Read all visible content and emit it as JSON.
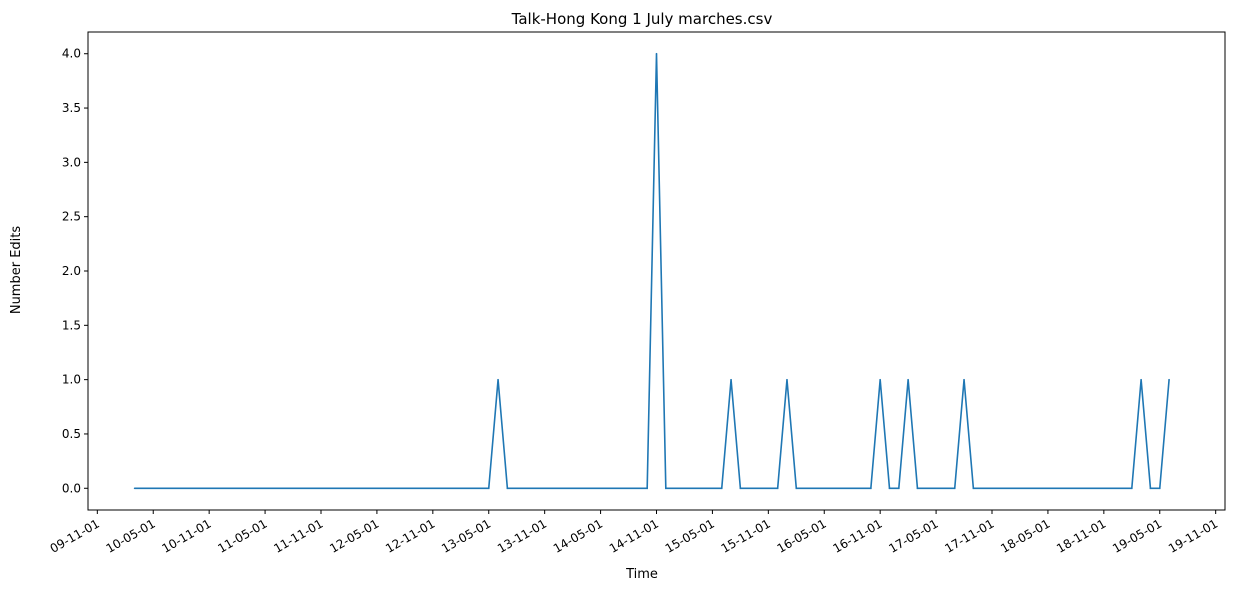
{
  "chart_data": {
    "type": "line",
    "title": "Talk-Hong Kong 1 July marches.csv",
    "xlabel": "Time",
    "ylabel": "Number Edits",
    "x_axis_type": "date",
    "x_tick_labels": [
      "09-11-01",
      "10-05-01",
      "10-11-01",
      "11-05-01",
      "11-11-01",
      "12-05-01",
      "12-11-01",
      "13-05-01",
      "13-11-01",
      "14-05-01",
      "14-11-01",
      "15-05-01",
      "15-11-01",
      "16-05-01",
      "16-11-01",
      "17-05-01",
      "17-11-01",
      "18-05-01",
      "18-11-01",
      "19-05-01",
      "19-11-01"
    ],
    "y_ticks": [
      0.0,
      0.5,
      1.0,
      1.5,
      2.0,
      2.5,
      3.0,
      3.5,
      4.0
    ],
    "y_tick_labels": [
      "0.0",
      "0.5",
      "1.0",
      "1.5",
      "2.0",
      "2.5",
      "3.0",
      "3.5",
      "4.0"
    ],
    "xlim": [
      "2009-10-01",
      "2019-12-01"
    ],
    "ylim": [
      -0.2,
      4.2
    ],
    "grid": false,
    "line_color": "#1f77b4",
    "series": [
      {
        "x": [
          "2010-03-01",
          "2013-05-01",
          "2013-06-01",
          "2013-07-01",
          "2014-10-01",
          "2014-11-01",
          "2014-12-01",
          "2015-06-01",
          "2015-07-01",
          "2015-08-01",
          "2015-12-01",
          "2016-01-01",
          "2016-02-01",
          "2016-10-01",
          "2016-11-01",
          "2016-12-01",
          "2017-01-01",
          "2017-02-01",
          "2017-03-01",
          "2017-07-01",
          "2017-08-01",
          "2017-09-01",
          "2019-02-01",
          "2019-03-01",
          "2019-04-01",
          "2019-05-01",
          "2019-06-01"
        ],
        "y": [
          0,
          0,
          1,
          0,
          0,
          4,
          0,
          0,
          1,
          0,
          0,
          1,
          0,
          0,
          1,
          0,
          0,
          1,
          0,
          0,
          1,
          0,
          0,
          1,
          0,
          0,
          1
        ]
      }
    ]
  }
}
